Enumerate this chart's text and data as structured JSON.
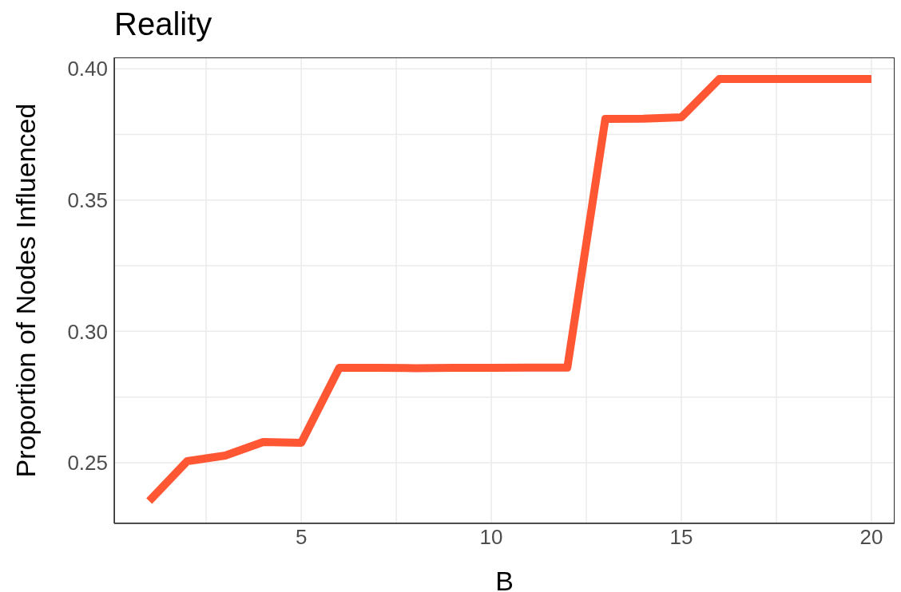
{
  "chart_data": {
    "type": "line",
    "title": "Reality",
    "xlabel": "B",
    "ylabel": "Proportion of Nodes Influenced",
    "x": [
      1,
      2,
      3,
      4,
      5,
      6,
      7,
      8,
      9,
      10,
      11,
      12,
      13,
      14,
      15,
      16,
      17,
      18,
      19,
      20
    ],
    "series": [
      {
        "color": "#ff5733",
        "values": [
          0.2354,
          0.2506,
          0.2527,
          0.2579,
          0.2576,
          0.2861,
          0.2861,
          0.286,
          0.2861,
          0.2861,
          0.2862,
          0.2862,
          0.3809,
          0.381,
          0.3815,
          0.3961,
          0.3961,
          0.3961,
          0.3961,
          0.3961
        ]
      }
    ],
    "xlim": [
      0.08,
      20.61
    ],
    "ylim": [
      0.2269,
      0.4043
    ],
    "xticks": [
      {
        "value": 2.5,
        "label": null
      },
      5,
      {
        "value": 7.5,
        "label": null
      },
      10,
      {
        "value": 12.5,
        "label": null
      },
      15,
      {
        "value": 17.5,
        "label": null
      },
      20
    ],
    "yticks": [
      {
        "value": 0.25,
        "label": "0.25"
      },
      {
        "value": 0.275,
        "label": null
      },
      {
        "value": 0.3,
        "label": "0.30"
      },
      {
        "value": 0.325,
        "label": null
      },
      {
        "value": 0.35,
        "label": "0.35"
      },
      {
        "value": 0.375,
        "label": null
      },
      {
        "value": 0.4,
        "label": "0.40"
      }
    ],
    "grid": true,
    "marker": "none",
    "line_style": "solid"
  }
}
